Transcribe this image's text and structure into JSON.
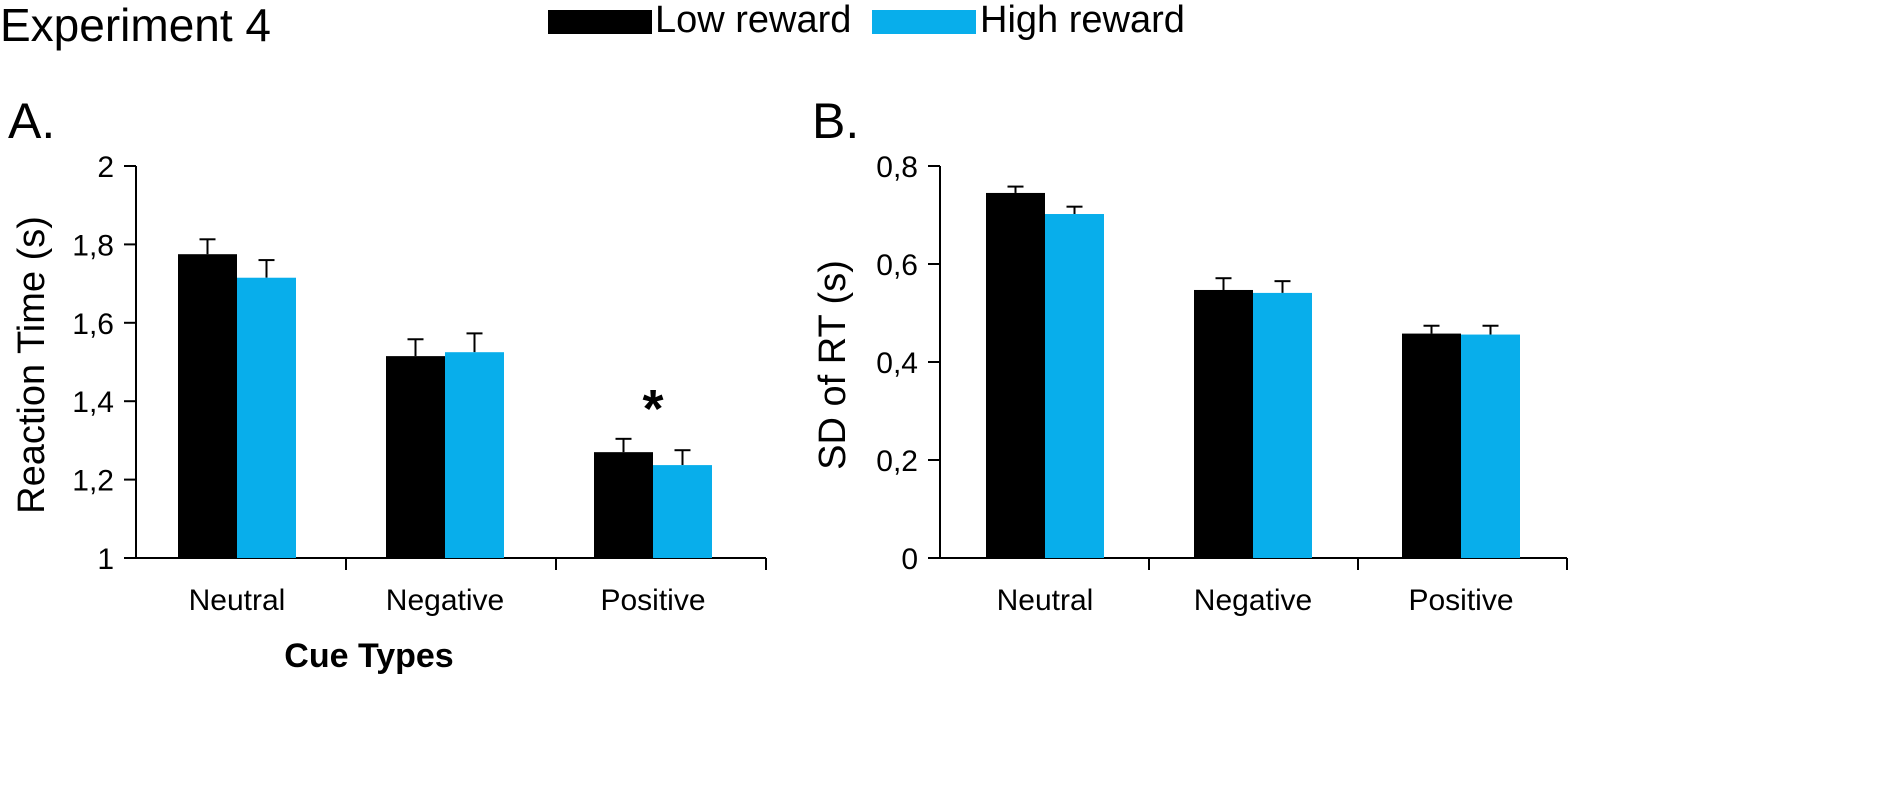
{
  "figure": {
    "title": "Experiment 4"
  },
  "legend": [
    {
      "label": "Low reward",
      "color": "#000000"
    },
    {
      "label": "High reward",
      "color": "#08AEEB"
    }
  ],
  "chart_data": [
    {
      "panel_label": "A.",
      "type": "bar",
      "title": "",
      "ylabel": "Reaction Time (s)",
      "xlabel": "Cue Types",
      "ylim": [
        1,
        2
      ],
      "yticks": [
        1,
        1.2,
        1.4,
        1.6,
        1.8,
        2
      ],
      "ytick_labels": [
        "1",
        "1,2",
        "1,4",
        "1,6",
        "1,8",
        "2"
      ],
      "categories": [
        "Neutral",
        "Negative",
        "Positive"
      ],
      "series": [
        {
          "name": "Low reward",
          "color": "#000000",
          "values": [
            1.775,
            1.515,
            1.27
          ],
          "errors": [
            0.038,
            0.043,
            0.034
          ]
        },
        {
          "name": "High reward",
          "color": "#08AEEB",
          "values": [
            1.715,
            1.525,
            1.237
          ],
          "errors": [
            0.045,
            0.048,
            0.038
          ]
        }
      ],
      "annotations": [
        {
          "text": "*",
          "category": "Positive"
        }
      ],
      "grid": false
    },
    {
      "panel_label": "B.",
      "type": "bar",
      "title": "",
      "ylabel": "SD of RT (s)",
      "xlabel": "",
      "ylim": [
        0,
        0.8
      ],
      "yticks": [
        0,
        0.2,
        0.4,
        0.6,
        0.8
      ],
      "ytick_labels": [
        "0",
        "0,2",
        "0,4",
        "0,6",
        "0,8"
      ],
      "categories": [
        "Neutral",
        "Negative",
        "Positive"
      ],
      "series": [
        {
          "name": "Low reward",
          "color": "#000000",
          "values": [
            0.745,
            0.547,
            0.458
          ],
          "errors": [
            0.013,
            0.024,
            0.016
          ]
        },
        {
          "name": "High reward",
          "color": "#08AEEB",
          "values": [
            0.702,
            0.541,
            0.456
          ],
          "errors": [
            0.015,
            0.024,
            0.018
          ]
        }
      ],
      "annotations": [],
      "grid": false
    }
  ]
}
